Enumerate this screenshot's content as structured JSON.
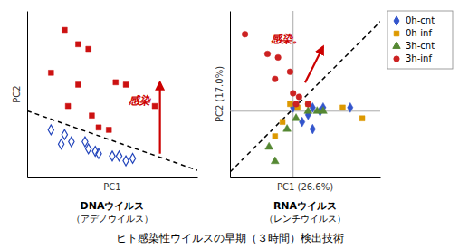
{
  "title": "ヒト感染性ウイルスの早期（３時間）検出技術",
  "chart_data": [
    {
      "type": "scatter",
      "title": "DNAウイルス",
      "subtitle": "（アデノウイルス）",
      "xlabel": "PC1",
      "ylabel": "PC2",
      "xlim": [
        0,
        1
      ],
      "ylim": [
        0.26,
        0.96
      ],
      "xticks": [],
      "yticks": [],
      "tick_labels": false,
      "series": [
        {
          "type": "scatter",
          "marker": "square",
          "color": "#cc1111",
          "x": [
            0.22,
            0.3,
            0.36,
            0.14,
            0.3,
            0.52,
            0.58,
            0.75,
            0.24,
            0.38,
            0.42,
            0.48
          ],
          "values": [
            0.88,
            0.82,
            0.8,
            0.7,
            0.65,
            0.66,
            0.65,
            0.56,
            0.56,
            0.52,
            0.47,
            0.46
          ]
        },
        {
          "type": "scatter",
          "marker": "diamond-open",
          "color": "#2244bb",
          "x": [
            0.14,
            0.22,
            0.2,
            0.26,
            0.34,
            0.36,
            0.4,
            0.42,
            0.5,
            0.54,
            0.58,
            0.62
          ],
          "values": [
            0.46,
            0.44,
            0.4,
            0.41,
            0.41,
            0.38,
            0.37,
            0.36,
            0.35,
            0.35,
            0.33,
            0.34
          ]
        },
        {
          "type": "line",
          "line_style": "dashed",
          "color": "#000000",
          "x": [
            0.0,
            1.0
          ],
          "values": [
            0.54,
            0.29
          ]
        }
      ],
      "annotations": [
        {
          "type": "arrow",
          "x": [
            0.78,
            0.78
          ],
          "y": [
            0.36,
            0.66
          ],
          "color": "#cc0000"
        },
        {
          "type": "text",
          "text": "感染",
          "x": 0.66,
          "y": 0.58,
          "color": "#cc0000"
        }
      ]
    },
    {
      "type": "scatter",
      "title": "RNAウイルス",
      "subtitle": "（レンチウイルス）",
      "xlabel": "PC1 (26.6%)",
      "ylabel": "PC2 (17.0%)",
      "xlim": [
        0.0,
        1.0
      ],
      "ylim": [
        0.05,
        0.98
      ],
      "xticks": [],
      "yticks": [],
      "tick_labels": false,
      "legend": "top-right",
      "series": [
        {
          "type": "scatter",
          "name": "0h-cnt",
          "marker": "diamond",
          "color": "#3355cc",
          "x": [
            0.42,
            0.55,
            0.62,
            0.52,
            0.6,
            0.8,
            0.48,
            0.55
          ],
          "values": [
            0.44,
            0.44,
            0.44,
            0.4,
            0.42,
            0.44,
            0.36,
            0.32
          ]
        },
        {
          "type": "scatter",
          "name": "0h-inf",
          "marker": "square",
          "color": "#dd9900",
          "x": [
            0.35,
            0.45,
            0.52,
            0.75,
            0.88,
            0.3,
            0.4
          ],
          "values": [
            0.36,
            0.44,
            0.46,
            0.44,
            0.38,
            0.28,
            0.46
          ]
        },
        {
          "type": "scatter",
          "name": "3h-cnt",
          "marker": "triangle",
          "color": "#558833",
          "x": [
            0.26,
            0.3,
            0.38,
            0.44,
            0.52,
            0.58,
            0.62
          ],
          "values": [
            0.22,
            0.14,
            0.32,
            0.38,
            0.42,
            0.42,
            0.42
          ]
        },
        {
          "type": "scatter",
          "name": "3h-inf",
          "marker": "circle",
          "color": "#cc2222",
          "x": [
            0.1,
            0.25,
            0.32,
            0.3,
            0.42,
            0.46,
            0.44,
            0.52,
            0.4
          ],
          "values": [
            0.85,
            0.74,
            0.72,
            0.6,
            0.52,
            0.5,
            0.46,
            0.46,
            0.64
          ]
        },
        {
          "type": "line",
          "line_style": "dashed",
          "color": "#000000",
          "x": [
            0.0,
            1.0
          ],
          "values": [
            0.08,
            0.92
          ]
        }
      ],
      "annotations": [
        {
          "type": "hline",
          "y": 0.42,
          "color": "#aaaaaa"
        },
        {
          "type": "vline",
          "x": 0.42,
          "color": "#aaaaaa"
        },
        {
          "type": "arrow",
          "x": [
            0.5,
            0.62
          ],
          "y": [
            0.58,
            0.78
          ],
          "color": "#cc0000"
        },
        {
          "type": "text",
          "text": "感染。",
          "x": 0.38,
          "y": 0.82,
          "color": "#cc0000"
        }
      ]
    }
  ]
}
